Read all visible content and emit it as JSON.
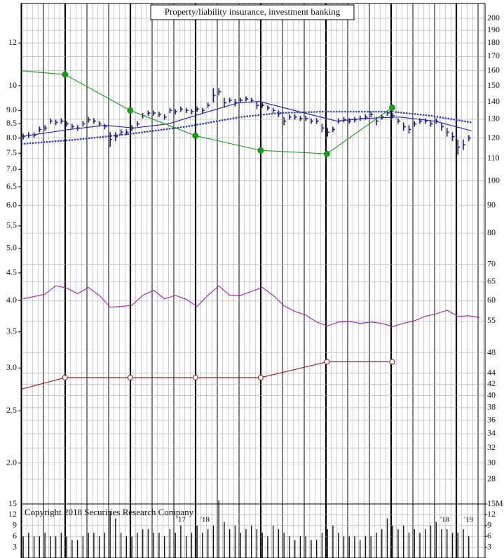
{
  "chart_data": [
    {
      "type": "stock",
      "title": "Property/liability insurance, investment banking",
      "log": true,
      "xlim": [
        -0.4,
        85
      ],
      "ylim": [
        1.68,
        14.2
      ],
      "y2lim": [
        25.2,
        213
      ],
      "yticks": [
        12,
        10,
        {
          "value": 9,
          "label": "9.0"
        },
        8.5,
        {
          "value": 8,
          "label": "8.0"
        },
        7.5,
        {
          "value": 7,
          "label": "7.0"
        },
        6.5,
        {
          "value": 6,
          "label": "6.0"
        },
        5.5,
        {
          "value": 5,
          "label": "5.0"
        },
        4.5,
        {
          "value": 4,
          "label": "4.0"
        },
        3.5,
        {
          "value": 3,
          "label": "3.0"
        },
        2.5,
        {
          "value": 2,
          "label": "2.0"
        }
      ],
      "y2ticks": [
        200,
        190,
        180,
        170,
        160,
        150,
        140,
        130,
        120,
        110,
        100,
        90,
        80,
        70,
        65,
        60,
        55,
        48,
        44,
        42,
        40,
        38,
        36,
        34,
        32,
        30,
        28
      ],
      "grid": true,
      "bars": {
        "color": "#1c1c7a",
        "high": [
          8.15,
          8.2,
          8.2,
          8.4,
          8.45,
          8.7,
          8.65,
          8.7,
          8.6,
          8.5,
          8.45,
          8.6,
          8.75,
          8.7,
          8.6,
          8.5,
          8.2,
          8.2,
          8.3,
          8.3,
          8.45,
          8.6,
          8.9,
          9.0,
          9.0,
          8.95,
          8.85,
          9.1,
          9.05,
          9.15,
          9.1,
          9.05,
          9.15,
          9.1,
          9.3,
          9.9,
          9.9,
          9.5,
          9.5,
          9.45,
          9.5,
          9.55,
          9.5,
          9.35,
          9.3,
          9.2,
          9.1,
          9.0,
          8.75,
          8.85,
          8.85,
          8.8,
          8.8,
          8.7,
          8.7,
          8.5,
          8.35,
          8.4,
          8.7,
          8.75,
          8.7,
          8.75,
          8.8,
          8.85,
          8.95,
          8.75,
          8.85,
          9.0,
          8.9,
          8.7,
          8.55,
          8.45,
          8.6,
          8.7,
          8.7,
          8.6,
          8.7,
          8.55,
          8.35,
          8.2,
          7.95,
          7.95,
          8.1
        ],
        "low": [
          7.95,
          8.0,
          8.0,
          8.2,
          8.25,
          8.5,
          8.45,
          8.5,
          8.4,
          8.3,
          8.25,
          8.4,
          8.55,
          8.5,
          8.4,
          8.3,
          7.7,
          7.9,
          8.1,
          8.1,
          8.25,
          8.4,
          8.7,
          8.8,
          8.8,
          8.75,
          8.65,
          8.9,
          8.85,
          8.95,
          8.9,
          8.85,
          8.95,
          8.9,
          9.1,
          9.3,
          9.6,
          9.1,
          9.3,
          9.15,
          9.3,
          9.35,
          9.3,
          9.05,
          9.1,
          9.0,
          8.9,
          8.75,
          8.45,
          8.65,
          8.65,
          8.6,
          8.6,
          8.5,
          8.5,
          8.2,
          8.05,
          8.2,
          8.5,
          8.55,
          8.5,
          8.55,
          8.6,
          8.65,
          8.75,
          8.45,
          8.65,
          8.8,
          8.7,
          8.5,
          8.25,
          8.15,
          8.4,
          8.5,
          8.5,
          8.4,
          8.5,
          8.25,
          8.05,
          7.9,
          7.45,
          7.6,
          7.9
        ]
      },
      "series": [
        {
          "color": "#1c1ca8",
          "marker": "none",
          "x": [
            -0.4,
            8.6,
            15.1,
            20.3,
            26.7,
            33.2,
            39.6,
            43.5,
            49.9,
            57.7,
            62.8,
            69.3,
            75.7,
            82.5
          ],
          "values": [
            8.05,
            8.3,
            8.45,
            8.35,
            8.5,
            8.9,
            9.3,
            9.35,
            9.0,
            8.6,
            8.7,
            8.75,
            8.6,
            8.25
          ]
        },
        {
          "color": "#2a3ab0",
          "marker": "x",
          "x": [
            -0.4,
            10,
            20,
            30,
            40,
            47,
            55,
            62,
            68,
            75,
            82.5
          ],
          "values": [
            7.8,
            7.95,
            8.15,
            8.4,
            8.75,
            8.9,
            8.95,
            8.95,
            8.95,
            8.8,
            8.55
          ]
        },
        {
          "color": "#1a9a1a",
          "marker": "dot",
          "x": [
            -0.4,
            7.7,
            19.7,
            31.7,
            43.7,
            55.9,
            67.9
          ],
          "values": [
            10.66,
            10.49,
            9.0,
            8.08,
            7.59,
            7.48,
            9.11
          ]
        },
        {
          "color": "#a01010",
          "marker": "circle",
          "x": [
            -0.4,
            7.7,
            19.7,
            31.7,
            43.7,
            55.9,
            67.9
          ],
          "values": [
            2.74,
            2.88,
            2.88,
            2.88,
            2.88,
            3.08,
            3.08
          ]
        },
        {
          "color": "#a020a8",
          "marker": "none",
          "x": [
            0,
            2,
            4,
            6,
            8,
            10,
            12,
            14,
            16,
            18,
            20,
            22,
            24,
            26,
            28,
            30,
            32,
            34,
            36,
            38,
            40,
            42,
            44,
            46,
            48,
            50,
            52,
            54,
            56,
            58,
            60,
            62,
            64,
            66,
            68,
            70,
            72,
            74,
            76,
            78,
            80,
            82,
            84
          ],
          "values": [
            4.03,
            4.07,
            4.11,
            4.26,
            4.22,
            4.12,
            4.23,
            4.09,
            3.89,
            3.9,
            3.92,
            4.09,
            4.18,
            4.03,
            4.09,
            4.02,
            3.9,
            4.09,
            4.26,
            4.09,
            4.09,
            4.16,
            4.23,
            4.09,
            3.91,
            3.82,
            3.76,
            3.65,
            3.59,
            3.65,
            3.66,
            3.63,
            3.65,
            3.63,
            3.58,
            3.63,
            3.67,
            3.74,
            3.78,
            3.84,
            3.74,
            3.75,
            3.72
          ]
        }
      ]
    },
    {
      "type": "volume",
      "xlim": [
        -0.4,
        85
      ],
      "ylim": [
        0,
        15
      ],
      "y2lim": [
        0,
        15
      ],
      "color": "#111111",
      "yticks": [
        15,
        12,
        9,
        6,
        3
      ],
      "y2ticks": [
        {
          "value": 15,
          "label": "15M"
        },
        12,
        9,
        6,
        3
      ],
      "values": [
        6,
        7,
        6,
        6,
        7,
        6,
        6,
        7,
        6,
        5,
        5,
        6,
        7,
        7,
        6,
        7,
        13,
        11,
        7,
        6,
        6,
        7,
        8,
        8,
        7,
        7,
        6,
        8,
        7,
        9,
        6,
        7,
        9,
        7,
        8,
        9,
        16,
        10,
        8,
        9,
        7,
        8,
        9,
        8,
        7,
        6,
        9,
        8,
        7,
        6,
        5,
        6,
        6,
        5,
        5,
        7,
        8,
        9,
        7,
        6,
        6,
        6,
        5,
        6,
        6,
        7,
        8,
        11,
        9,
        8,
        9,
        7,
        8,
        7,
        8,
        9,
        10,
        8,
        8,
        7,
        7,
        8,
        6
      ],
      "annotations": [
        "Copyright 2018 Securities Research Company",
        "'17",
        "'18",
        "'18",
        "'19"
      ]
    }
  ]
}
